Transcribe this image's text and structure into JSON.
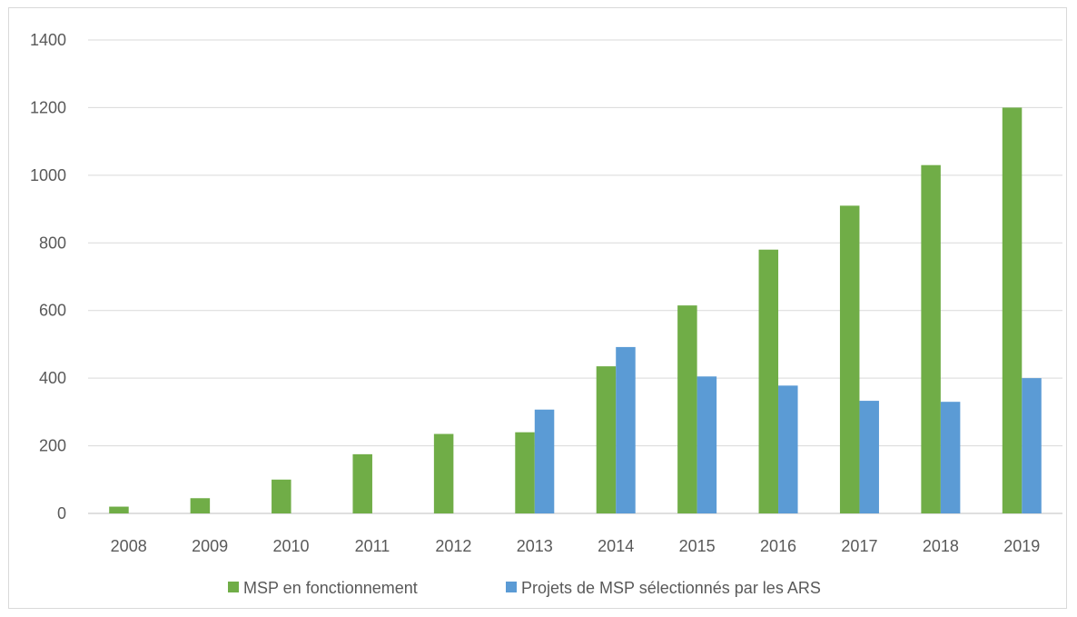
{
  "chart_data": {
    "type": "bar",
    "categories": [
      "2008",
      "2009",
      "2010",
      "2011",
      "2012",
      "2013",
      "2014",
      "2015",
      "2016",
      "2017",
      "2018",
      "2019"
    ],
    "series": [
      {
        "name": "MSP en fonctionnement",
        "color": "#70ad47",
        "values": [
          20,
          45,
          100,
          175,
          235,
          240,
          435,
          615,
          780,
          910,
          1030,
          1200
        ]
      },
      {
        "name": "Projets de MSP sélectionnés par les ARS",
        "color": "#5b9bd5",
        "values": [
          null,
          null,
          null,
          null,
          null,
          307,
          492,
          405,
          378,
          333,
          330,
          400
        ]
      }
    ],
    "ylim": [
      0,
      1400
    ],
    "yticks": [
      "0",
      "200",
      "400",
      "600",
      "800",
      "1000",
      "1200",
      "1400"
    ],
    "grid": true,
    "legend_position": "bottom",
    "title": "",
    "xlabel": "",
    "ylabel": ""
  }
}
